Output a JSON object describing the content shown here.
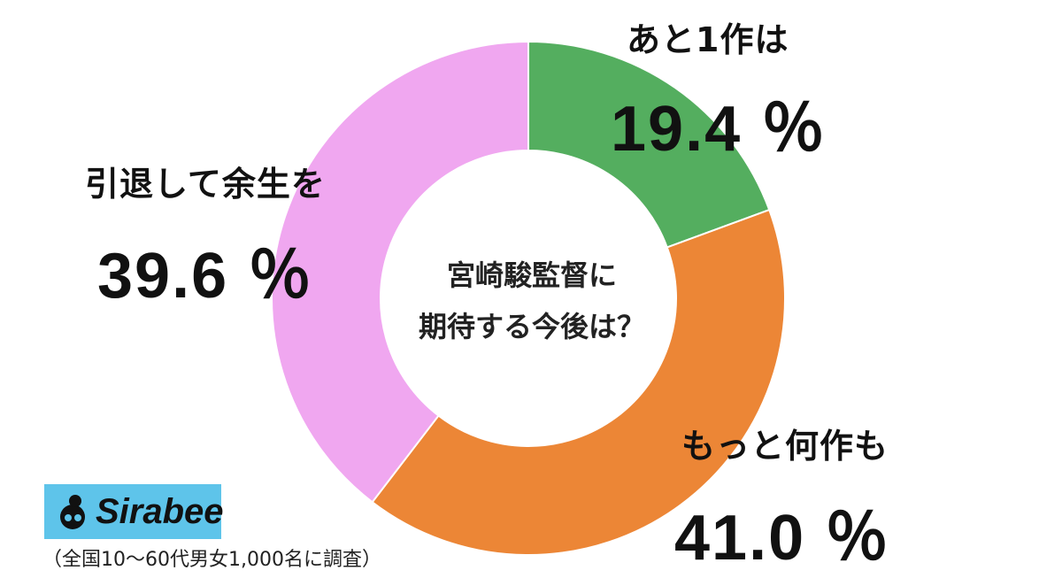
{
  "chart_data": {
    "type": "pie",
    "title": "宮崎駿監督に期待する今後は？",
    "title_lines": [
      "宮崎駿監督に",
      "期待する今後は？"
    ],
    "series": [
      {
        "name": "あと1作は",
        "value": 19.4,
        "value_label": "19.4 ％",
        "color": "#54ae5f"
      },
      {
        "name": "もっと何作も",
        "value": 41.0,
        "value_label": "41.0 ％",
        "color": "#ec8636"
      },
      {
        "name": "引退して余生を",
        "value": 39.6,
        "value_label": "39.6 ％",
        "color": "#f0a7f0"
      }
    ]
  },
  "brand": {
    "logo_text": "Sirabee",
    "logo_bg": "#5ec4ea",
    "icon": "sirabee-logo-icon"
  },
  "footnote": "（全国10〜60代男女1,000名に調査）"
}
